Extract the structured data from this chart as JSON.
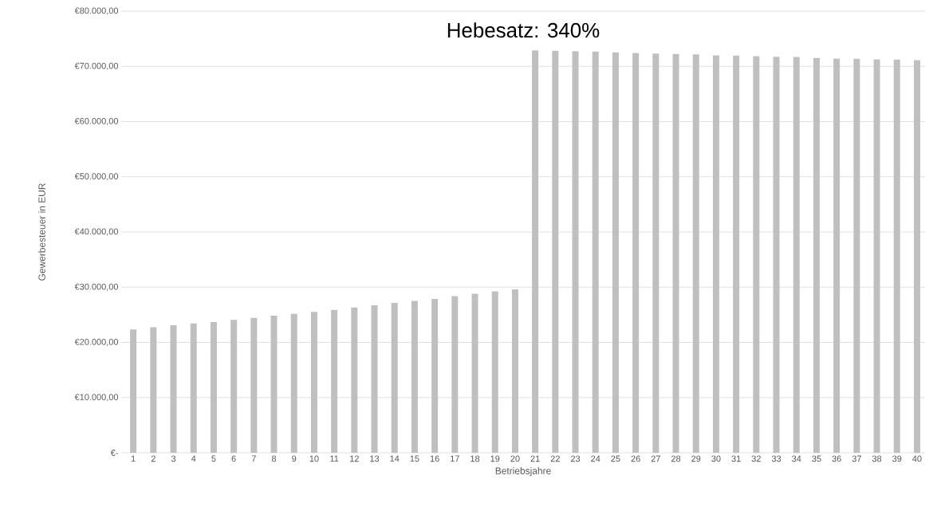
{
  "chart_data": {
    "type": "bar",
    "title": "Hebesatz: 340%",
    "xlabel": "Betriebsjahre",
    "ylabel": "Gewerbesteuer in EUR",
    "categories": [
      "1",
      "2",
      "3",
      "4",
      "5",
      "6",
      "7",
      "8",
      "9",
      "10",
      "11",
      "12",
      "13",
      "14",
      "15",
      "16",
      "17",
      "18",
      "19",
      "20",
      "21",
      "22",
      "23",
      "24",
      "25",
      "26",
      "27",
      "28",
      "29",
      "30",
      "31",
      "32",
      "33",
      "34",
      "35",
      "36",
      "37",
      "38",
      "39",
      "40"
    ],
    "values": [
      22360,
      22750,
      23090,
      23430,
      23670,
      24060,
      24450,
      24830,
      25170,
      25510,
      25890,
      26330,
      26710,
      27150,
      27490,
      27870,
      28360,
      28800,
      29230,
      29610,
      72900,
      72810,
      72750,
      72660,
      72520,
      72420,
      72320,
      72230,
      72170,
      71990,
      71940,
      71840,
      71740,
      71700,
      71510,
      71410,
      71360,
      71260,
      71220,
      71120
    ],
    "color": "#bfbfbf",
    "ylim": [
      0,
      80000
    ],
    "yticks": [
      {
        "value": 0,
        "label": "€-"
      },
      {
        "value": 10000,
        "label": "€10.000,00"
      },
      {
        "value": 20000,
        "label": "€20.000,00"
      },
      {
        "value": 30000,
        "label": "€30.000,00"
      },
      {
        "value": 40000,
        "label": "€40.000,00"
      },
      {
        "value": 50000,
        "label": "€50.000,00"
      },
      {
        "value": 60000,
        "label": "€60.000,00"
      },
      {
        "value": 70000,
        "label": "€70.000,00"
      },
      {
        "value": 80000,
        "label": "€80.000,00"
      }
    ],
    "grid": "y"
  }
}
